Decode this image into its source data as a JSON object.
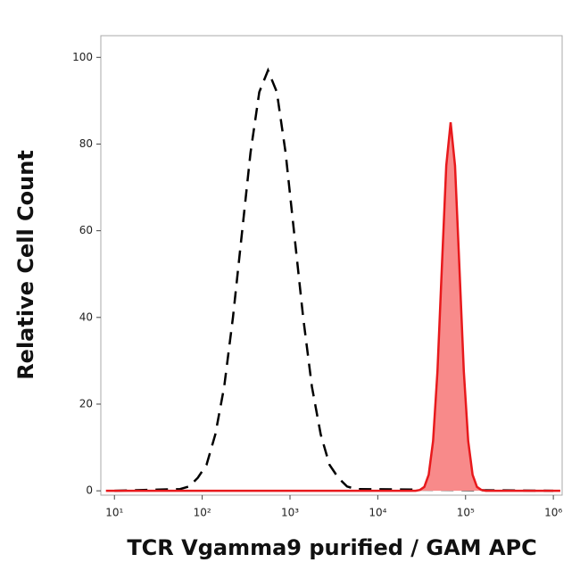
{
  "chart_data": {
    "type": "line",
    "x_label": "TCR Vgamma9 purified / GAM APC",
    "y_label": "Relative Cell Count",
    "xscale": "log",
    "xlim": [
      7,
      1260000
    ],
    "ylim": [
      -1,
      105
    ],
    "xticks": [
      {
        "value": 10,
        "label": "10¹"
      },
      {
        "value": 100,
        "label": "10²"
      },
      {
        "value": 1000,
        "label": "10³"
      },
      {
        "value": 10000,
        "label": "10⁴"
      },
      {
        "value": 100000,
        "label": "10⁵"
      },
      {
        "value": 1000000,
        "label": "10⁶"
      }
    ],
    "yticks": [
      0,
      20,
      40,
      60,
      80,
      100
    ],
    "series": [
      {
        "color": "#000000",
        "dashed": true,
        "filled": false,
        "x": [
          10,
          56,
          71,
          89,
          112,
          141,
          178,
          224,
          282,
          355,
          447,
          562,
          708,
          891,
          1122,
          1413,
          1778,
          2239,
          2818,
          3548,
          4467,
          5623,
          1000000
        ],
        "values": [
          0,
          0.4,
          1,
          3,
          6,
          13,
          24,
          40,
          59,
          78,
          92,
          97,
          92,
          78,
          59,
          40,
          24,
          13,
          6,
          3,
          1,
          0.4,
          0
        ]
      },
      {
        "color": "#e8191c",
        "fill_color": "#f88a8a",
        "dashed": false,
        "filled": true,
        "x": [
          8,
          26915,
          30200,
          33884,
          38019,
          42658,
          47863,
          53703,
          60256,
          67608,
          75858,
          85114,
          95499,
          107152,
          120226,
          134896,
          151356,
          169824,
          1200000
        ],
        "values": [
          0,
          0,
          0.2,
          0.9,
          3.7,
          11.5,
          27.6,
          51.6,
          75,
          85,
          75,
          51.6,
          27.6,
          11.5,
          3.7,
          0.9,
          0.2,
          0,
          0
        ]
      }
    ]
  }
}
